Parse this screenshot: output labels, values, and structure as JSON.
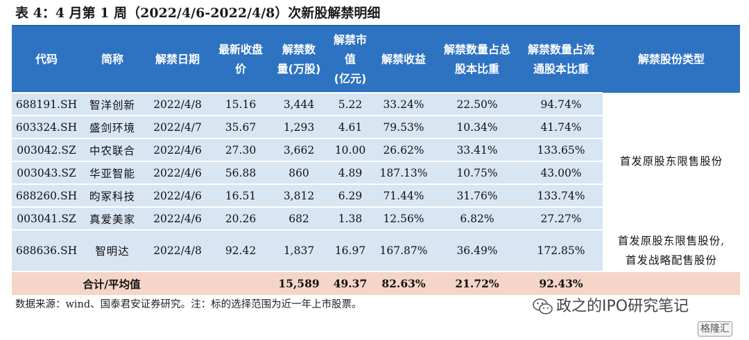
{
  "title": "表 4：4 月第 1 周（2022/4/6-2022/4/8）次新股解禁明细",
  "table": {
    "headers": [
      [
        "代码"
      ],
      [
        "简称"
      ],
      [
        "解禁日期"
      ],
      [
        "最新收盘",
        "价"
      ],
      [
        "解禁数",
        "量(万股)"
      ],
      [
        "解禁市",
        "值",
        "(亿元)"
      ],
      [
        "解禁收益"
      ],
      [
        "解禁数量占总",
        "股本比重"
      ],
      [
        "解禁数量占流",
        "通股本比重"
      ],
      [
        "解禁股份类型"
      ]
    ],
    "rows": [
      {
        "code": "688191.SH",
        "name": "智洋创新",
        "date": "2022/4/8",
        "price": "15.16",
        "shares": "3,444",
        "value": "5.22",
        "gain": "33.24%",
        "total_ratio": "22.50%",
        "float_ratio": "94.74%"
      },
      {
        "code": "603324.SH",
        "name": "盛剑环境",
        "date": "2022/4/7",
        "price": "35.67",
        "shares": "1,293",
        "value": "4.61",
        "gain": "79.53%",
        "total_ratio": "10.34%",
        "float_ratio": "41.74%"
      },
      {
        "code": "003042.SZ",
        "name": "中农联合",
        "date": "2022/4/6",
        "price": "27.30",
        "shares": "3,662",
        "value": "10.00",
        "gain": "26.62%",
        "total_ratio": "33.41%",
        "float_ratio": "133.65%"
      },
      {
        "code": "003043.SZ",
        "name": "华亚智能",
        "date": "2022/4/6",
        "price": "56.88",
        "shares": "860",
        "value": "4.89",
        "gain": "187.13%",
        "total_ratio": "10.75%",
        "float_ratio": "43.00%"
      },
      {
        "code": "688260.SH",
        "name": "昀冢科技",
        "date": "2022/4/6",
        "price": "16.51",
        "shares": "3,812",
        "value": "6.29",
        "gain": "71.44%",
        "total_ratio": "31.76%",
        "float_ratio": "133.74%"
      },
      {
        "code": "003041.SZ",
        "name": "真爱美家",
        "date": "2022/4/6",
        "price": "20.26",
        "shares": "682",
        "value": "1.38",
        "gain": "12.56%",
        "total_ratio": "6.82%",
        "float_ratio": "27.27%"
      },
      {
        "code": "688636.SH",
        "name": "智明达",
        "date": "2022/4/8",
        "price": "92.42",
        "shares": "1,837",
        "value": "16.97",
        "gain": "167.87%",
        "total_ratio": "36.49%",
        "float_ratio": "172.85%"
      }
    ],
    "type_group1": "首发原股东限售股份",
    "type_group2_line1": "首发原股东限售股份,",
    "type_group2_line2": "首发战略配售股份",
    "total": {
      "label": "合计/平均值",
      "shares": "15,589",
      "value": "49.37",
      "gain": "82.63%",
      "total_ratio": "21.72%",
      "float_ratio": "92.43%"
    }
  },
  "footnote": "数据来源：wind、国泰君安证券研究。注：标的选择范围为近一年上市股票。",
  "watermark": "政之的IPO研究笔记",
  "badge": "格隆汇"
}
